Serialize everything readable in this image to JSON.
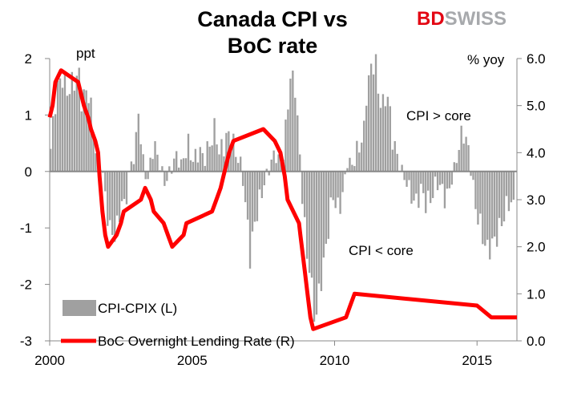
{
  "header": {
    "title_line1": "Canada CPI vs",
    "title_line2": "BoC rate"
  },
  "brand": {
    "part1": "BD",
    "part2": "SWISS",
    "color1": "#e30613",
    "color2": "#a7a9ac"
  },
  "colors": {
    "bars": "#a0a0a0",
    "line": "#ff0000",
    "axis": "#888888",
    "zero_line": "#888888"
  },
  "chart_data": {
    "type": "bar",
    "combo": "bar + line (dual axis)",
    "x_axis": {
      "range": [
        2000,
        2016.4
      ],
      "ticks": [
        "2000",
        "2005",
        "2010",
        "2015"
      ]
    },
    "y_left": {
      "unit_label": "ppt",
      "range": [
        -3,
        2
      ],
      "ticks": [
        "-3",
        "-2",
        "-1",
        "0",
        "1",
        "2"
      ]
    },
    "y_right": {
      "unit_label": "% yoy",
      "range": [
        0,
        6
      ],
      "ticks": [
        "0.0",
        "1.0",
        "2.0",
        "3.0",
        "4.0",
        "5.0",
        "6.0"
      ]
    },
    "annotations": [
      "CPI > core",
      "CPI < core"
    ],
    "legend_position": "bottom-left",
    "series": [
      {
        "name": "CPI-CPIX (L)",
        "type": "bar",
        "axis": "left",
        "frequency": "monthly",
        "start": 2000,
        "anchors": [
          [
            2000.0,
            0.4
          ],
          [
            2000.2,
            1.4
          ],
          [
            2000.4,
            1.7
          ],
          [
            2000.6,
            1.4
          ],
          [
            2000.8,
            1.6
          ],
          [
            2001.0,
            1.7
          ],
          [
            2001.1,
            1.2
          ],
          [
            2001.3,
            1.5
          ],
          [
            2001.5,
            0.8
          ],
          [
            2001.6,
            0.3
          ],
          [
            2001.8,
            0.1
          ],
          [
            2001.9,
            -0.4
          ],
          [
            2002.1,
            -1.1
          ],
          [
            2002.3,
            -1.1
          ],
          [
            2002.5,
            -0.5
          ],
          [
            2002.6,
            -0.7
          ],
          [
            2002.7,
            -0.2
          ],
          [
            2002.9,
            0.3
          ],
          [
            2003.0,
            0.5
          ],
          [
            2003.1,
            1.2
          ],
          [
            2003.2,
            0.3
          ],
          [
            2003.4,
            -0.2
          ],
          [
            2003.6,
            0.5
          ],
          [
            2003.8,
            0.2
          ],
          [
            2004.0,
            -0.2
          ],
          [
            2004.2,
            0.0
          ],
          [
            2004.4,
            0.3
          ],
          [
            2004.6,
            0.1
          ],
          [
            2004.8,
            0.5
          ],
          [
            2005.0,
            0.2
          ],
          [
            2005.2,
            0.4
          ],
          [
            2005.4,
            0.2
          ],
          [
            2005.6,
            0.5
          ],
          [
            2005.8,
            0.8
          ],
          [
            2005.9,
            0.3
          ],
          [
            2006.1,
            0.5
          ],
          [
            2006.3,
            0.7
          ],
          [
            2006.5,
            0.3
          ],
          [
            2006.7,
            0.1
          ],
          [
            2006.8,
            -0.4
          ],
          [
            2006.9,
            -0.9
          ],
          [
            2007.0,
            -1.5
          ],
          [
            2007.2,
            -0.8
          ],
          [
            2007.4,
            -0.4
          ],
          [
            2007.5,
            -0.2
          ],
          [
            2007.7,
            0.1
          ],
          [
            2007.9,
            0.4
          ],
          [
            2008.0,
            0.2
          ],
          [
            2008.2,
            0.4
          ],
          [
            2008.3,
            1.0
          ],
          [
            2008.4,
            1.7
          ],
          [
            2008.6,
            1.5
          ],
          [
            2008.7,
            0.6
          ],
          [
            2008.8,
            -0.1
          ],
          [
            2008.9,
            -0.9
          ],
          [
            2009.0,
            -1.5
          ],
          [
            2009.1,
            -1.7
          ],
          [
            2009.2,
            -2.3
          ],
          [
            2009.3,
            -2.7
          ],
          [
            2009.4,
            -2.2
          ],
          [
            2009.6,
            -1.6
          ],
          [
            2009.8,
            -0.8
          ],
          [
            2009.9,
            -0.4
          ],
          [
            2010.1,
            -0.7
          ],
          [
            2010.3,
            -0.3
          ],
          [
            2010.4,
            0.2
          ],
          [
            2010.6,
            0.1
          ],
          [
            2010.8,
            0.4
          ],
          [
            2011.0,
            0.7
          ],
          [
            2011.1,
            1.5
          ],
          [
            2011.3,
            1.9
          ],
          [
            2011.4,
            2.0
          ],
          [
            2011.5,
            1.4
          ],
          [
            2011.7,
            1.1
          ],
          [
            2011.8,
            1.5
          ],
          [
            2012.0,
            0.6
          ],
          [
            2012.2,
            0.2
          ],
          [
            2012.4,
            -0.1
          ],
          [
            2012.6,
            -0.3
          ],
          [
            2012.8,
            -0.6
          ],
          [
            2013.0,
            -0.3
          ],
          [
            2013.2,
            -0.6
          ],
          [
            2013.4,
            -0.4
          ],
          [
            2013.6,
            -0.2
          ],
          [
            2013.9,
            -0.5
          ],
          [
            2014.0,
            -0.3
          ],
          [
            2014.2,
            0.1
          ],
          [
            2014.4,
            0.6
          ],
          [
            2014.5,
            0.7
          ],
          [
            2014.7,
            0.3
          ],
          [
            2014.8,
            -0.2
          ],
          [
            2014.9,
            -0.6
          ],
          [
            2015.1,
            -1.0
          ],
          [
            2015.3,
            -1.4
          ],
          [
            2015.5,
            -1.3
          ],
          [
            2015.7,
            -1.1
          ],
          [
            2015.9,
            -0.8
          ],
          [
            2016.1,
            -0.5
          ],
          [
            2016.3,
            -0.7
          ]
        ]
      },
      {
        "name": "BoC Overnight Lending Rate (R)",
        "type": "step-line",
        "axis": "right",
        "points": [
          [
            2000.0,
            4.75
          ],
          [
            2000.1,
            5.0
          ],
          [
            2000.2,
            5.5
          ],
          [
            2000.4,
            5.75
          ],
          [
            2001.0,
            5.5
          ],
          [
            2001.1,
            5.25
          ],
          [
            2001.2,
            5.0
          ],
          [
            2001.35,
            4.75
          ],
          [
            2001.45,
            4.5
          ],
          [
            2001.6,
            4.25
          ],
          [
            2001.7,
            4.0
          ],
          [
            2001.75,
            3.5
          ],
          [
            2001.85,
            2.75
          ],
          [
            2001.95,
            2.25
          ],
          [
            2002.05,
            2.0
          ],
          [
            2002.35,
            2.25
          ],
          [
            2002.5,
            2.5
          ],
          [
            2002.6,
            2.75
          ],
          [
            2003.2,
            3.0
          ],
          [
            2003.35,
            3.25
          ],
          [
            2003.55,
            3.0
          ],
          [
            2003.65,
            2.75
          ],
          [
            2004.0,
            2.5
          ],
          [
            2004.15,
            2.25
          ],
          [
            2004.3,
            2.0
          ],
          [
            2004.7,
            2.25
          ],
          [
            2004.8,
            2.5
          ],
          [
            2005.7,
            2.75
          ],
          [
            2005.85,
            3.0
          ],
          [
            2006.0,
            3.25
          ],
          [
            2006.1,
            3.5
          ],
          [
            2006.2,
            3.75
          ],
          [
            2006.3,
            4.0
          ],
          [
            2006.45,
            4.25
          ],
          [
            2007.5,
            4.5
          ],
          [
            2007.9,
            4.25
          ],
          [
            2008.1,
            4.0
          ],
          [
            2008.25,
            3.5
          ],
          [
            2008.35,
            3.0
          ],
          [
            2008.75,
            2.5
          ],
          [
            2008.8,
            2.25
          ],
          [
            2008.95,
            1.5
          ],
          [
            2009.05,
            1.0
          ],
          [
            2009.15,
            0.5
          ],
          [
            2009.25,
            0.25
          ],
          [
            2010.4,
            0.5
          ],
          [
            2010.55,
            0.75
          ],
          [
            2010.7,
            1.0
          ],
          [
            2015.0,
            0.75
          ],
          [
            2015.5,
            0.5
          ],
          [
            2016.4,
            0.5
          ]
        ]
      }
    ]
  }
}
